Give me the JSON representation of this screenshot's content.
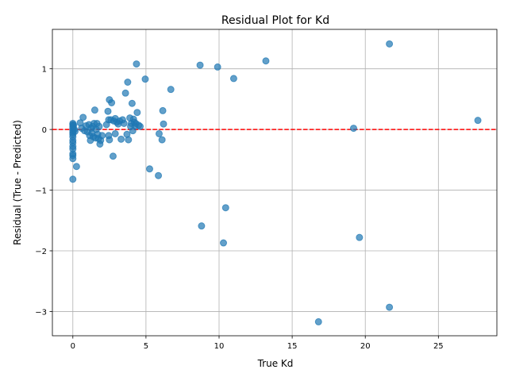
{
  "chart_data": {
    "type": "scatter",
    "title": "Residual Plot for Kd",
    "xlabel": "True Kd",
    "ylabel": "Residual (True - Predicted)",
    "xlim": [
      -1.4,
      29.0
    ],
    "ylim": [
      -3.4,
      1.65
    ],
    "xticks": [
      0,
      5,
      10,
      15,
      20,
      25
    ],
    "yticks": [
      -3,
      -2,
      -1,
      0,
      1
    ],
    "xtick_labels": [
      "0",
      "5",
      "10",
      "15",
      "20",
      "25"
    ],
    "ytick_labels": [
      "−3",
      "−2",
      "−1",
      "0",
      "1"
    ],
    "grid": true,
    "reference_line": {
      "y": 0,
      "color": "#ff0000",
      "style": "dashed"
    },
    "point_color": "#1f77b4",
    "points": [
      [
        0,
        0.1
      ],
      [
        0,
        0.08
      ],
      [
        0,
        0.05
      ],
      [
        0,
        0.02
      ],
      [
        0,
        -0.02
      ],
      [
        0,
        -0.05
      ],
      [
        0,
        -0.08
      ],
      [
        0,
        -0.12
      ],
      [
        0,
        -0.18
      ],
      [
        0,
        -0.22
      ],
      [
        0,
        -0.28
      ],
      [
        0,
        -0.32
      ],
      [
        0,
        -0.4
      ],
      [
        0,
        -0.43
      ],
      [
        0,
        -0.48
      ],
      [
        0,
        -0.82
      ],
      [
        0.05,
        0.07
      ],
      [
        0.1,
        0.0
      ],
      [
        0.15,
        -0.03
      ],
      [
        0.25,
        -0.61
      ],
      [
        0.5,
        0.11
      ],
      [
        0.6,
        0.02
      ],
      [
        0.7,
        0.2
      ],
      [
        0.8,
        -0.02
      ],
      [
        0.9,
        0.06
      ],
      [
        1.0,
        -0.04
      ],
      [
        1.1,
        0.08
      ],
      [
        1.15,
        -0.1
      ],
      [
        1.2,
        -0.18
      ],
      [
        1.25,
        0.02
      ],
      [
        1.3,
        -0.06
      ],
      [
        1.35,
        0.05
      ],
      [
        1.4,
        -0.12
      ],
      [
        1.45,
        0.1
      ],
      [
        1.5,
        0.32
      ],
      [
        1.55,
        -0.14
      ],
      [
        1.6,
        0.0
      ],
      [
        1.65,
        0.1
      ],
      [
        1.7,
        -0.08
      ],
      [
        1.75,
        -0.15
      ],
      [
        1.8,
        0.05
      ],
      [
        1.85,
        -0.24
      ],
      [
        1.9,
        -0.18
      ],
      [
        2.0,
        -0.1
      ],
      [
        2.3,
        0.08
      ],
      [
        2.4,
        0.3
      ],
      [
        2.45,
        0.16
      ],
      [
        2.45,
        -0.1
      ],
      [
        2.5,
        -0.17
      ],
      [
        2.5,
        0.49
      ],
      [
        2.6,
        0.16
      ],
      [
        2.65,
        0.44
      ],
      [
        2.75,
        -0.44
      ],
      [
        2.8,
        0.14
      ],
      [
        2.9,
        0.18
      ],
      [
        2.9,
        -0.07
      ],
      [
        3.0,
        0.12
      ],
      [
        3.1,
        0.09
      ],
      [
        3.2,
        0.14
      ],
      [
        3.3,
        -0.16
      ],
      [
        3.4,
        0.16
      ],
      [
        3.5,
        0.1
      ],
      [
        3.6,
        0.6
      ],
      [
        3.7,
        -0.08
      ],
      [
        3.75,
        0.78
      ],
      [
        3.8,
        -0.17
      ],
      [
        3.9,
        0.19
      ],
      [
        3.95,
        0.05
      ],
      [
        4.0,
        0.1
      ],
      [
        4.05,
        0.43
      ],
      [
        4.1,
        -0.02
      ],
      [
        4.15,
        0.17
      ],
      [
        4.2,
        0.12
      ],
      [
        4.25,
        0.06
      ],
      [
        4.3,
        0.1
      ],
      [
        4.35,
        1.08
      ],
      [
        4.4,
        0.28
      ],
      [
        4.5,
        0.07
      ],
      [
        4.6,
        0.05
      ],
      [
        4.95,
        0.83
      ],
      [
        5.25,
        -0.65
      ],
      [
        5.85,
        -0.76
      ],
      [
        5.9,
        -0.07
      ],
      [
        6.1,
        -0.17
      ],
      [
        6.15,
        0.31
      ],
      [
        6.2,
        0.09
      ],
      [
        6.7,
        0.66
      ],
      [
        8.7,
        1.06
      ],
      [
        8.8,
        -1.59
      ],
      [
        9.9,
        1.03
      ],
      [
        10.3,
        -1.87
      ],
      [
        10.45,
        -1.29
      ],
      [
        11.0,
        0.84
      ],
      [
        13.2,
        1.13
      ],
      [
        16.8,
        -3.17
      ],
      [
        19.2,
        0.02
      ],
      [
        19.6,
        -1.78
      ],
      [
        21.65,
        1.41
      ],
      [
        21.65,
        -2.93
      ],
      [
        27.7,
        0.15
      ]
    ]
  }
}
